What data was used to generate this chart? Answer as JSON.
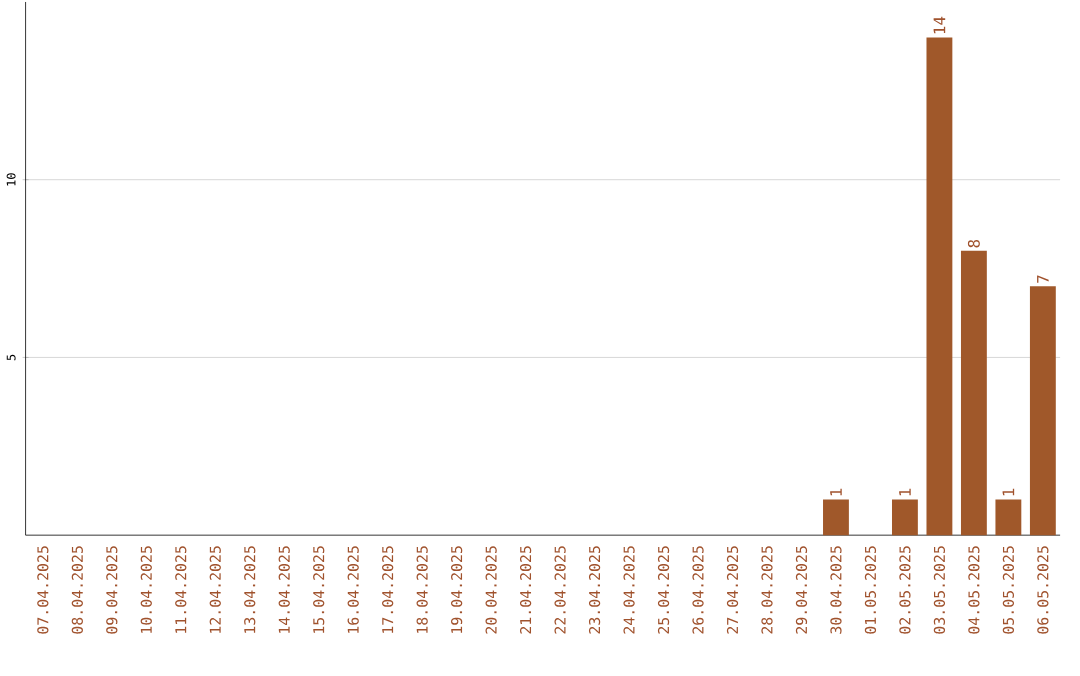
{
  "chart_data": {
    "type": "bar",
    "categories": [
      "07.04.2025",
      "08.04.2025",
      "09.04.2025",
      "10.04.2025",
      "11.04.2025",
      "12.04.2025",
      "13.04.2025",
      "14.04.2025",
      "15.04.2025",
      "16.04.2025",
      "17.04.2025",
      "18.04.2025",
      "19.04.2025",
      "20.04.2025",
      "21.04.2025",
      "22.04.2025",
      "23.04.2025",
      "24.04.2025",
      "25.04.2025",
      "26.04.2025",
      "27.04.2025",
      "28.04.2025",
      "29.04.2025",
      "30.04.2025",
      "01.05.2025",
      "02.05.2025",
      "03.05.2025",
      "04.05.2025",
      "05.05.2025",
      "06.05.2025"
    ],
    "values": [
      0,
      0,
      0,
      0,
      0,
      0,
      0,
      0,
      0,
      0,
      0,
      0,
      0,
      0,
      0,
      0,
      0,
      0,
      0,
      0,
      0,
      0,
      0,
      1,
      0,
      1,
      14,
      8,
      1,
      7
    ],
    "value_labels": [
      null,
      null,
      null,
      null,
      null,
      null,
      null,
      null,
      null,
      null,
      null,
      null,
      null,
      null,
      null,
      null,
      null,
      null,
      null,
      null,
      null,
      null,
      null,
      "1",
      null,
      "1",
      "14",
      "8",
      "1",
      "7"
    ],
    "color": "#a0582a",
    "ylim": [
      0,
      15
    ],
    "yticks": [
      5,
      10
    ],
    "grid": "y"
  }
}
